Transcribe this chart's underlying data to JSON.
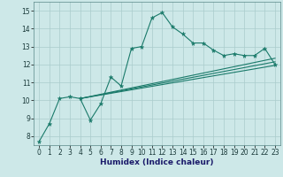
{
  "xlabel": "Humidex (Indice chaleur)",
  "bg_color": "#cde8e8",
  "grid_color": "#aacccc",
  "line_color": "#1a7a6a",
  "xlim": [
    -0.5,
    23.5
  ],
  "ylim": [
    7.5,
    15.5
  ],
  "xticks": [
    0,
    1,
    2,
    3,
    4,
    5,
    6,
    7,
    8,
    9,
    10,
    11,
    12,
    13,
    14,
    15,
    16,
    17,
    18,
    19,
    20,
    21,
    22,
    23
  ],
  "yticks": [
    8,
    9,
    10,
    11,
    12,
    13,
    14,
    15
  ],
  "main_x": [
    0,
    1,
    2,
    3,
    4,
    5,
    6,
    7,
    8,
    9,
    10,
    11,
    12,
    13,
    14,
    15,
    16,
    17,
    18,
    19,
    20,
    21,
    22,
    23
  ],
  "main_y": [
    7.7,
    8.7,
    10.1,
    10.2,
    10.1,
    8.9,
    9.8,
    11.3,
    10.8,
    12.9,
    13.0,
    14.6,
    14.9,
    14.1,
    13.7,
    13.2,
    13.2,
    12.8,
    12.5,
    12.6,
    12.5,
    12.5,
    12.9,
    12.0
  ],
  "line2_x": [
    4,
    23
  ],
  "line2_y": [
    10.1,
    12.35
  ],
  "line3_x": [
    4,
    23
  ],
  "line3_y": [
    10.1,
    12.15
  ],
  "line4_x": [
    4,
    23
  ],
  "line4_y": [
    10.1,
    11.95
  ],
  "xlabel_color": "#1a1a6a",
  "xlabel_fontsize": 6.5,
  "tick_fontsize": 5.5
}
